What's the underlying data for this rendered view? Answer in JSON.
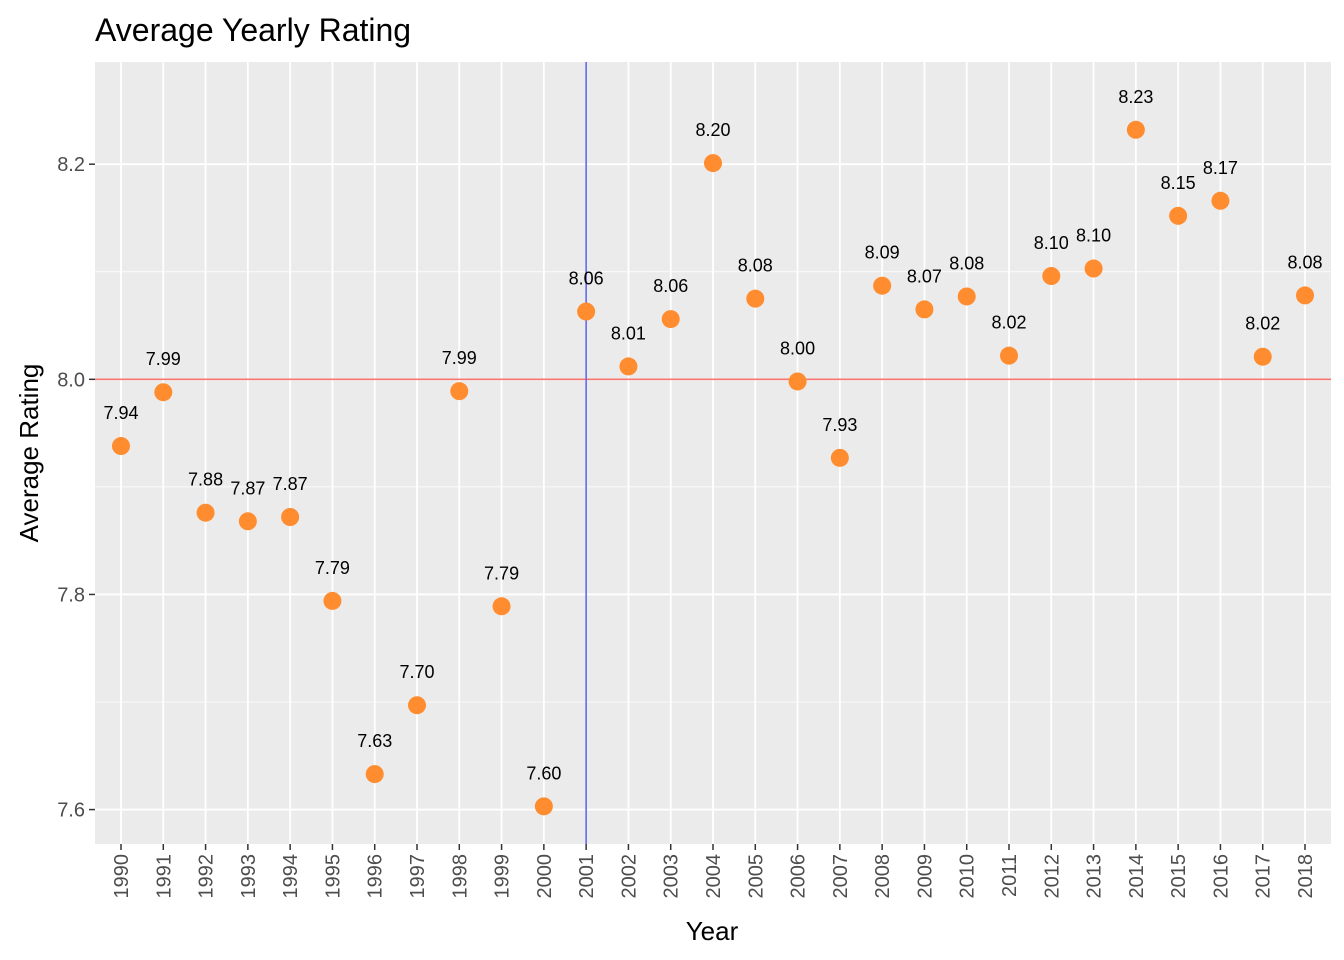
{
  "chart_data": {
    "type": "scatter",
    "title": "Average Yearly Rating",
    "xlabel": "Year",
    "ylabel": "Average Rating",
    "x": [
      "1990",
      "1991",
      "1992",
      "1993",
      "1994",
      "1995",
      "1996",
      "1997",
      "1998",
      "1999",
      "2000",
      "2001",
      "2002",
      "2003",
      "2004",
      "2005",
      "2006",
      "2007",
      "2008",
      "2009",
      "2010",
      "2011",
      "2012",
      "2013",
      "2014",
      "2015",
      "2016",
      "2017",
      "2018"
    ],
    "values": [
      7.938,
      7.988,
      7.876,
      7.868,
      7.872,
      7.794,
      7.633,
      7.697,
      7.989,
      7.789,
      7.603,
      8.063,
      8.012,
      8.056,
      8.201,
      8.075,
      7.998,
      7.927,
      8.087,
      8.065,
      8.077,
      8.022,
      8.096,
      8.103,
      8.232,
      8.152,
      8.166,
      8.021,
      8.078
    ],
    "labels": [
      "7.94",
      "7.99",
      "7.88",
      "7.87",
      "7.87",
      "7.79",
      "7.63",
      "7.70",
      "7.99",
      "7.79",
      "7.60",
      "8.06",
      "8.01",
      "8.06",
      "8.20",
      "8.08",
      "8.00",
      "7.93",
      "8.09",
      "8.07",
      "8.08",
      "8.02",
      "8.10",
      "8.10",
      "8.23",
      "8.15",
      "8.17",
      "8.02",
      "8.08"
    ],
    "y_ticks": [
      "7.6",
      "7.8",
      "8.0",
      "8.2"
    ],
    "ylim": [
      7.568,
      8.295
    ],
    "hline": {
      "y": 8.0,
      "color": "#f8766d"
    },
    "vline": {
      "x": "2001",
      "color": "#6666ee"
    },
    "point_color": "#ff8c2e",
    "panel_background": "#ebebeb",
    "grid_color": "#ffffff",
    "grid": true,
    "legend": "none"
  }
}
